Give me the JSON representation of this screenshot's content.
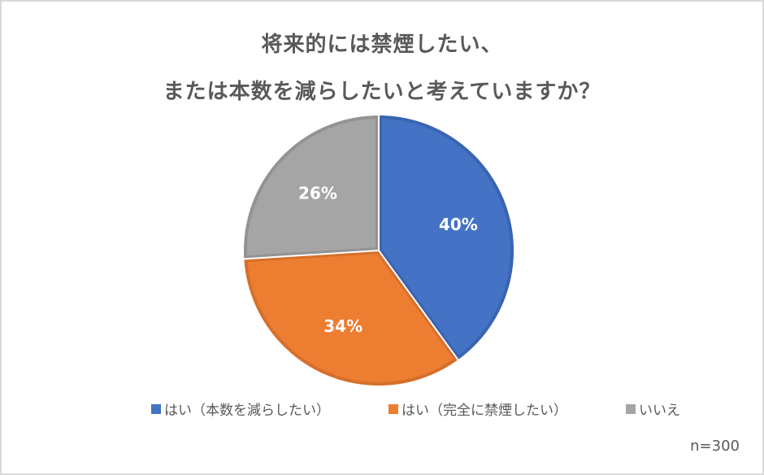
{
  "chart_data": {
    "type": "pie",
    "title": "将来的には禁煙したい、\nまたは本数を減らしたいと考えていますか？",
    "title_lines": [
      "将来的には禁煙したい、",
      "または本数を減らしたいと考えていますか？"
    ],
    "categories": [
      "はい（本数を減らしたい）",
      "はい（完全に禁煙したい）",
      "いいえ"
    ],
    "values": [
      40,
      34,
      26
    ],
    "data_labels": [
      "40%",
      "34%",
      "26%"
    ],
    "colors": [
      "#4472c4",
      "#ed7d31",
      "#a5a5a5"
    ],
    "border_colors": [
      "#3a64b0",
      "#d66f2b",
      "#939393"
    ],
    "start_angle_deg": 0,
    "direction": "clockwise",
    "legend_position": "bottom",
    "note": "n=300"
  },
  "legend": [
    {
      "label": "はい（本数を減らしたい）",
      "color": "#4472c4"
    },
    {
      "label": "はい（完全に禁煙したい）",
      "color": "#ed7d31"
    },
    {
      "label": "いいえ",
      "color": "#a5a5a5"
    }
  ],
  "note": "n=300"
}
